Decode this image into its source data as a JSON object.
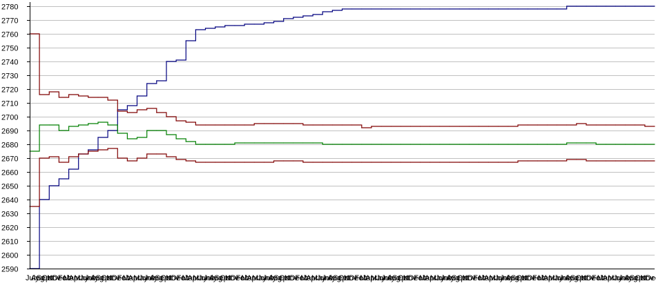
{
  "chart_data": {
    "type": "line",
    "title": "",
    "xlabel": "",
    "ylabel": "",
    "ylim": [
      2590,
      2780
    ],
    "yticks": [
      2590,
      2600,
      2610,
      2620,
      2630,
      2640,
      2650,
      2660,
      2670,
      2680,
      2690,
      2700,
      2710,
      2720,
      2730,
      2740,
      2750,
      2760,
      2770,
      2780
    ],
    "grid": true,
    "legend": "none",
    "x_tick_labels": [
      "July",
      "Aug",
      "Sept",
      "Oct",
      "Nov",
      "Dec",
      "Feb",
      "Mar",
      "Apr",
      "May",
      "June",
      "July",
      "Aug",
      "Sept",
      "Oct",
      "Nov",
      "Dec",
      "Feb",
      "Mar",
      "Apr",
      "May",
      "June",
      "July",
      "Aug",
      "Sept",
      "Oct",
      "Nov",
      "Dec",
      "Feb",
      "Mar",
      "Apr",
      "May",
      "June",
      "July",
      "Aug",
      "Sept",
      "Oct",
      "Nov",
      "Dec",
      "Feb",
      "Mar",
      "Apr",
      "May",
      "June",
      "July",
      "Aug",
      "Sept",
      "Oct",
      "Nov",
      "Dec",
      "Feb",
      "Mar",
      "Apr",
      "May",
      "June",
      "July",
      "Aug",
      "Sept",
      "Oct",
      "Nov",
      "Dec",
      "Feb",
      "Mar",
      "Apr",
      "May",
      "June",
      "July",
      "Aug",
      "Sept",
      "Oct",
      "Nov",
      "Dec",
      "Feb",
      "Mar",
      "Apr",
      "May",
      "June",
      "July",
      "Aug",
      "Sept",
      "Oct",
      "Nov",
      "Dec",
      "Feb",
      "Mar",
      "Apr",
      "May",
      "June",
      "July",
      "Aug",
      "Sept",
      "Oct",
      "Nov",
      "Dec",
      "Feb",
      "Mar",
      "Apr",
      "May",
      "June",
      "July",
      "Aug",
      "Sept",
      "Oct",
      "Nov",
      "Dec",
      "Feb",
      "Mar",
      "Apr",
      "May",
      "June",
      "July",
      "Aug",
      "Sept",
      "Oct",
      "Nov",
      "Dec"
    ],
    "x": [
      0,
      2,
      4,
      6,
      8,
      10,
      12,
      14,
      16,
      18,
      20,
      22,
      24,
      26,
      28,
      30,
      32,
      34,
      36,
      38,
      40,
      42,
      44,
      46,
      48,
      50,
      52,
      54,
      56,
      58,
      60,
      62,
      64,
      66,
      68,
      70,
      72,
      74,
      76,
      78,
      80,
      82,
      84,
      86,
      88,
      90,
      92,
      94,
      96,
      98,
      100,
      102,
      104,
      106,
      108,
      110,
      112,
      114,
      116,
      118,
      120,
      122,
      124,
      126,
      128
    ],
    "series": [
      {
        "color": "#00007f",
        "values": [
          2590,
          2640,
          2650,
          2655,
          2662,
          2673,
          2676,
          2685,
          2690,
          2705,
          2708,
          2715,
          2724,
          2726,
          2740,
          2741,
          2755,
          2763,
          2764,
          2765,
          2766,
          2766,
          2767,
          2767,
          2768,
          2769,
          2771,
          2772,
          2773,
          2774,
          2776,
          2777,
          2778,
          2778,
          2778,
          2778,
          2778,
          2778,
          2778,
          2778,
          2778,
          2778,
          2778,
          2778,
          2778,
          2778,
          2778,
          2778,
          2778,
          2778,
          2778,
          2778,
          2778,
          2778,
          2778,
          2780,
          2780,
          2780,
          2780,
          2780,
          2780,
          2780,
          2780,
          2780,
          2780
        ]
      },
      {
        "color": "#7f0000",
        "values": [
          2760,
          2716,
          2718,
          2714,
          2716,
          2715,
          2714,
          2714,
          2712,
          2704,
          2703,
          2705,
          2706,
          2703,
          2700,
          2697,
          2696,
          2694,
          2694,
          2694,
          2694,
          2694,
          2694,
          2695,
          2695,
          2695,
          2695,
          2695,
          2694,
          2694,
          2694,
          2694,
          2694,
          2694,
          2692,
          2693,
          2693,
          2693,
          2693,
          2693,
          2693,
          2693,
          2693,
          2693,
          2693,
          2693,
          2693,
          2693,
          2693,
          2693,
          2694,
          2694,
          2694,
          2694,
          2694,
          2694,
          2695,
          2694,
          2694,
          2694,
          2694,
          2694,
          2694,
          2693,
          2693
        ]
      },
      {
        "color": "#007f00",
        "values": [
          2675,
          2694,
          2694,
          2690,
          2693,
          2694,
          2695,
          2696,
          2694,
          2688,
          2684,
          2685,
          2690,
          2690,
          2687,
          2684,
          2682,
          2680,
          2680,
          2680,
          2680,
          2681,
          2681,
          2681,
          2681,
          2681,
          2681,
          2681,
          2681,
          2681,
          2680,
          2680,
          2680,
          2680,
          2680,
          2680,
          2680,
          2680,
          2680,
          2680,
          2680,
          2680,
          2680,
          2680,
          2680,
          2680,
          2680,
          2680,
          2680,
          2680,
          2680,
          2680,
          2680,
          2680,
          2680,
          2681,
          2681,
          2681,
          2680,
          2680,
          2680,
          2680,
          2680,
          2680,
          2680
        ]
      },
      {
        "color": "#7f0000",
        "values": [
          2635,
          2670,
          2671,
          2667,
          2671,
          2673,
          2675,
          2676,
          2677,
          2670,
          2668,
          2670,
          2673,
          2673,
          2671,
          2669,
          2668,
          2667,
          2667,
          2667,
          2667,
          2667,
          2667,
          2667,
          2667,
          2668,
          2668,
          2668,
          2667,
          2667,
          2667,
          2667,
          2667,
          2667,
          2667,
          2667,
          2667,
          2667,
          2667,
          2667,
          2667,
          2667,
          2667,
          2667,
          2667,
          2667,
          2667,
          2667,
          2667,
          2667,
          2668,
          2668,
          2668,
          2668,
          2668,
          2669,
          2669,
          2668,
          2668,
          2668,
          2668,
          2668,
          2668,
          2668,
          2668
        ]
      }
    ]
  }
}
